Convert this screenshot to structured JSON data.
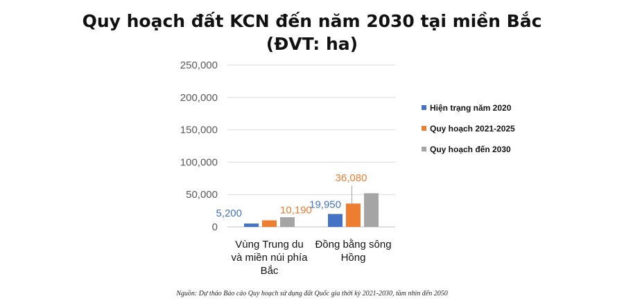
{
  "title_line1": "Quy hoạch đất KCN đến năm 2030 tại miền Bắc",
  "title_line2": "(ĐVT: ha)",
  "source": "Nguồn: Dự thảo Báo cáo Quy hoạch sử dụng đất Quốc gia thời kỳ 2021-2030, tầm nhìn đến 2050",
  "colors": {
    "series1": "#4472C4",
    "series2": "#ED7D31",
    "series3": "#A5A5A5",
    "gridline": "#d9d9d9",
    "axis": "#bfbfbf"
  },
  "chart_data": {
    "type": "bar",
    "title": "Quy hoạch đất KCN đến năm 2030 tại miền Bắc (ĐVT: ha)",
    "categories": [
      "Vùng Trung du và miền núi phía Bắc",
      "Đồng bằng sông Hồng"
    ],
    "category_lines": [
      [
        "Vùng Trung du",
        "và miền núi phía",
        "Bắc"
      ],
      [
        "Đồng bằng sông",
        "Hồng"
      ]
    ],
    "series": [
      {
        "name": "Hiện trạng năm 2020",
        "values": [
          5200,
          19950
        ],
        "labels": [
          "5,200",
          "19,950"
        ]
      },
      {
        "name": "Quy hoạch 2021-2025",
        "values": [
          10190,
          36080
        ],
        "labels": [
          "10,190",
          "36,080"
        ]
      },
      {
        "name": "Quy hoạch đến 2030",
        "values": [
          15000,
          52000
        ],
        "labels": [
          "",
          ""
        ]
      }
    ],
    "yticks": [
      "0",
      "50,000",
      "100,000",
      "150,000",
      "200,000",
      "250,000"
    ],
    "ylim": [
      0,
      250000
    ],
    "xlabel": "",
    "ylabel": "",
    "grid": true,
    "legend_position": "right"
  }
}
